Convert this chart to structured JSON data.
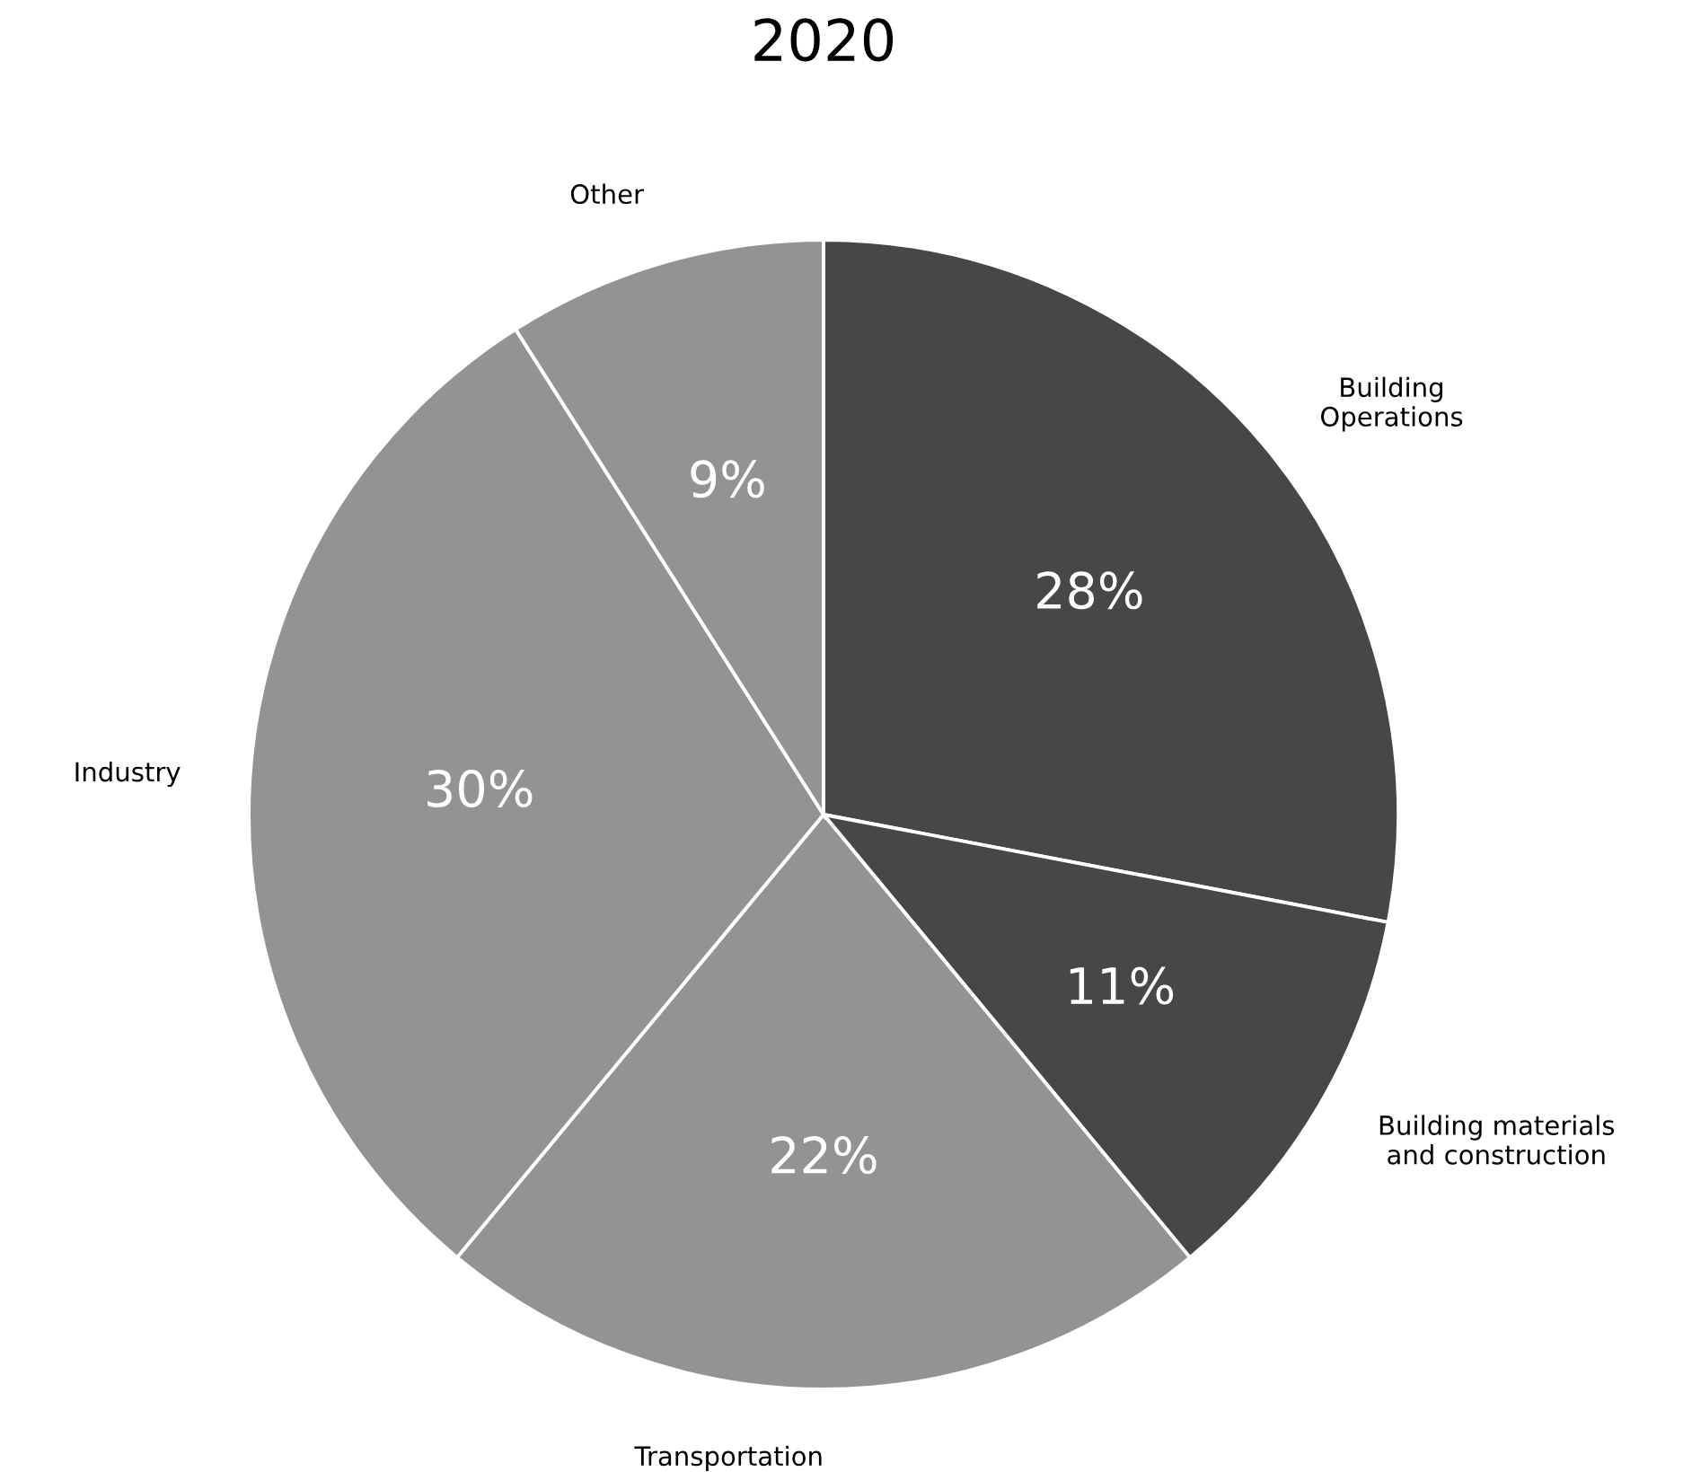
{
  "chart_data": {
    "type": "pie",
    "title": "2020",
    "categories": [
      "Building\nOperations",
      "Building materials\nand construction",
      "Transportation",
      "Industry",
      "Other"
    ],
    "values": [
      28,
      11,
      22,
      30,
      9
    ],
    "value_labels": [
      "28%",
      "11%",
      "22%",
      "30%",
      "9%"
    ],
    "colors": [
      "#474747",
      "#474747",
      "#939393",
      "#939393",
      "#939393"
    ]
  }
}
